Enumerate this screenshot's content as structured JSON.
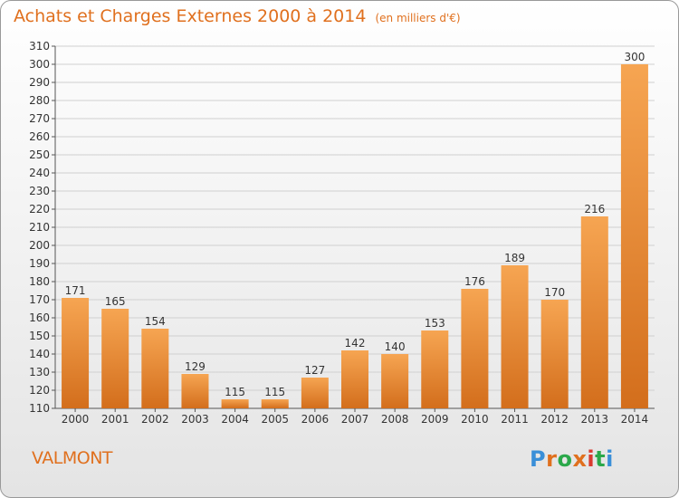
{
  "header": {
    "title": "Achats et Charges Externes 2000 à 2014",
    "subtitle": "(en milliers d'€)"
  },
  "footer": {
    "town": "VALMONT",
    "logo": "Proxiti",
    "logo_colors": [
      "#3a8fd8",
      "#e0701e",
      "#2ba84a",
      "#e0701e",
      "#d93a2f",
      "#2ba84a",
      "#3a8fd8"
    ]
  },
  "colors": {
    "bar_light": "#f6a552",
    "bar_dark": "#d36e1c",
    "grid": "#d0d0d0",
    "text": "#333333"
  },
  "chart_data": {
    "type": "bar",
    "categories": [
      "2000",
      "2001",
      "2002",
      "2003",
      "2004",
      "2005",
      "2006",
      "2007",
      "2008",
      "2009",
      "2010",
      "2011",
      "2012",
      "2013",
      "2014"
    ],
    "values": [
      171,
      165,
      154,
      129,
      115,
      115,
      127,
      142,
      140,
      153,
      176,
      189,
      170,
      216,
      300
    ],
    "ylim": [
      110,
      310
    ],
    "yticks": [
      110,
      120,
      130,
      140,
      150,
      160,
      170,
      180,
      190,
      200,
      210,
      220,
      230,
      240,
      250,
      260,
      270,
      280,
      290,
      300,
      310
    ],
    "grid": true,
    "data_labels": true
  }
}
